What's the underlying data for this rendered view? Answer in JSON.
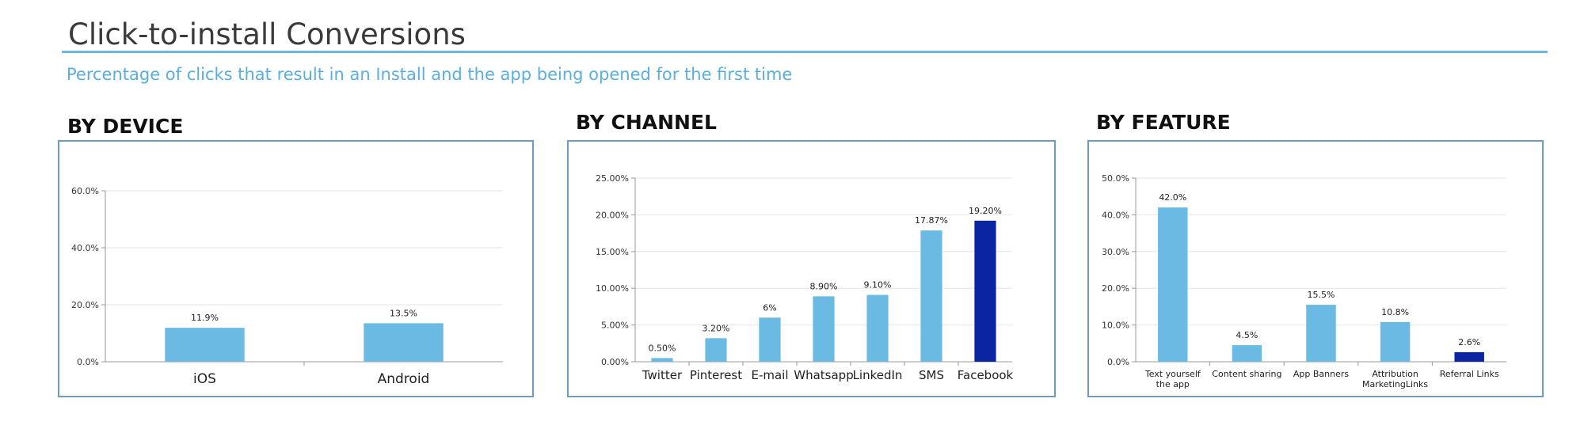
{
  "header": {
    "title": "Click-to-install Conversions",
    "subtitle": "Percentage of clicks that result in an Install and the app being opened for the first time"
  },
  "colors": {
    "bar": "#6bbae3",
    "highlight_bar": "#0b24a2",
    "rule": "#6bb8e2",
    "box_border": "#6f9bbd",
    "axis": "#999999",
    "grid": "#e6e6e6"
  },
  "chart_data": [
    {
      "type": "bar",
      "title": "BY DEVICE",
      "categories": [
        "iOS",
        "Android"
      ],
      "values": [
        11.9,
        13.5
      ],
      "data_labels": [
        "11.9%",
        "13.5%"
      ],
      "yticks": [
        0,
        20,
        40,
        60
      ],
      "ytick_labels": [
        "0.0%",
        "20.0%",
        "40.0%",
        "60.0%"
      ],
      "ylim": [
        0,
        60
      ],
      "highlight_index": null,
      "grid": true
    },
    {
      "type": "bar",
      "title": "BY CHANNEL",
      "categories": [
        "Twitter",
        "Pinterest",
        "E-mail",
        "Whatsapp",
        "LinkedIn",
        "SMS",
        "Facebook"
      ],
      "values": [
        0.5,
        3.2,
        6,
        8.9,
        9.1,
        17.87,
        19.2
      ],
      "data_labels": [
        "0.50%",
        "3.20%",
        "6%",
        "8.90%",
        "9.10%",
        "17.87%",
        "19.20%"
      ],
      "yticks": [
        0,
        5,
        10,
        15,
        20,
        25
      ],
      "ytick_labels": [
        "0.00%",
        "5.00%",
        "10.00%",
        "15.00%",
        "20.00%",
        "25.00%"
      ],
      "ylim": [
        0,
        25
      ],
      "highlight_index": 6,
      "grid": true
    },
    {
      "type": "bar",
      "title": "BY FEATURE",
      "categories": [
        "Text yourself the app",
        "Content sharing",
        "App Banners",
        "Attribution MarketingLinks",
        "Referral Links"
      ],
      "category_lines": [
        [
          "Text yourself",
          "the app"
        ],
        [
          "Content sharing"
        ],
        [
          "App Banners"
        ],
        [
          "Attribution",
          "MarketingLinks"
        ],
        [
          "Referral Links"
        ]
      ],
      "values": [
        42,
        4.5,
        15.5,
        10.8,
        2.6
      ],
      "data_labels": [
        "42.0%",
        "4.5%",
        "15.5%",
        "10.8%",
        "2.6%"
      ],
      "yticks": [
        0,
        10,
        20,
        30,
        40,
        50
      ],
      "ytick_labels": [
        "0.0%",
        "10.0%",
        "20.0%",
        "30.0%",
        "40.0%",
        "50.0%"
      ],
      "ylim": [
        0,
        50
      ],
      "highlight_index": 4,
      "grid": true
    }
  ]
}
